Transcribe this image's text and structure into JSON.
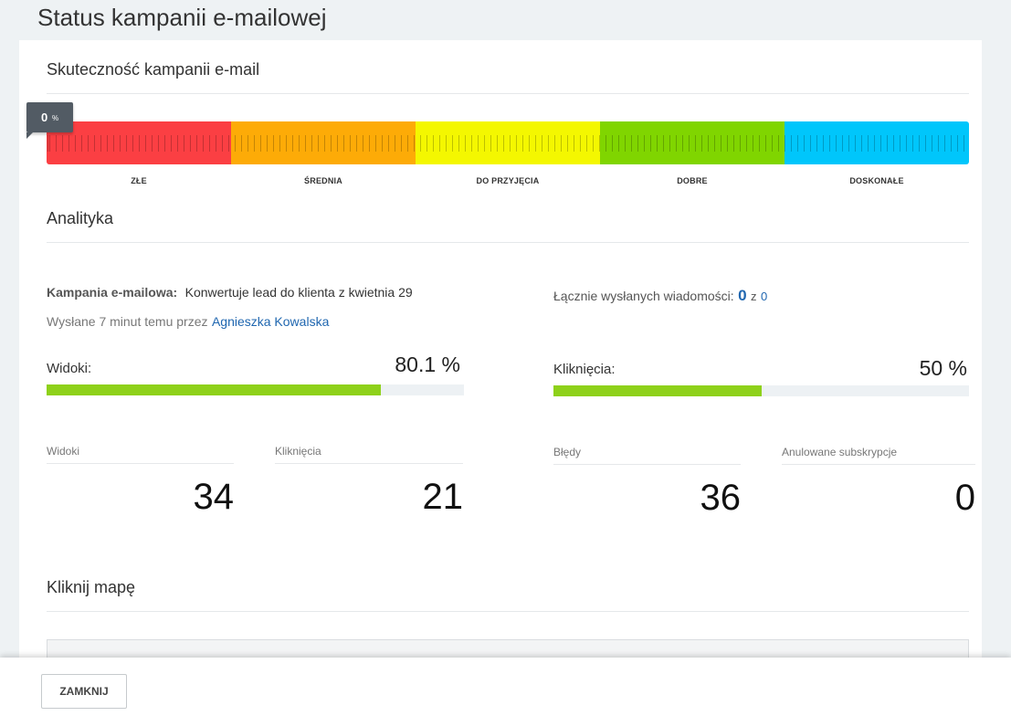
{
  "page_title": "Status kampanii e-mailowej",
  "effectiveness": {
    "title": "Skuteczność kampanii e-mail",
    "score_value": "0",
    "score_unit": "%",
    "segments": [
      {
        "label": "ZŁE",
        "color": "#fb3f43"
      },
      {
        "label": "ŚREDNIA",
        "color": "#fdab07"
      },
      {
        "label": "DO PRZYJĘCIA",
        "color": "#f4f700"
      },
      {
        "label": "DOBRE",
        "color": "#80d500"
      },
      {
        "label": "DOSKONAŁE",
        "color": "#00c6fb"
      }
    ]
  },
  "analytics": {
    "title": "Analityka",
    "campaign_label": "Kampania e-mailowa:",
    "campaign_name": "Konwertuje lead do klienta z kwietnia 29",
    "sent_prefix": "Wysłane 7 minut temu przez",
    "sent_by": "Agnieszka Kowalska",
    "total_sent_label": "Łącznie wysłanych wiadomości:",
    "total_sent_value": "0",
    "total_sent_of": "z",
    "total_sent_max": "0",
    "views_label": "Widoki:",
    "views_pct": "80.1 %",
    "views_fraction": 0.801,
    "clicks_label": "Kliknięcia:",
    "clicks_pct": "50 %",
    "clicks_fraction": 0.5,
    "stats": [
      {
        "caption": "Widoki",
        "value": "34"
      },
      {
        "caption": "Kliknięcia",
        "value": "21"
      },
      {
        "caption": "Błędy",
        "value": "36"
      },
      {
        "caption": "Anulowane subskrypcje",
        "value": "0"
      }
    ]
  },
  "click_map": {
    "title": "Kliknij mapę"
  },
  "footer": {
    "close_label": "ZAMKNIJ"
  }
}
